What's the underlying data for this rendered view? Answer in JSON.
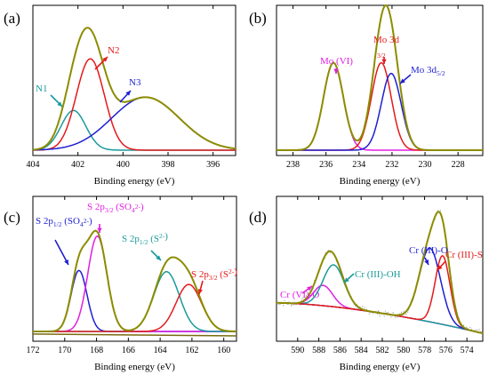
{
  "figure": {
    "colors": {
      "envelope": "#8c8c00",
      "red": "#e41a1c",
      "blue": "#1f1fd1",
      "teal": "#1a9a9a",
      "magenta": "#e01fe0",
      "gray": "#b5b5b5",
      "olive_dark": "#7a6a10",
      "raw_data": "#9a9a9a"
    }
  },
  "chart_data": [
    {
      "panel_label": "(a)",
      "type": "line",
      "xlabel": "Binding energy (eV)",
      "ylabel": "",
      "xlim": [
        404,
        395
      ],
      "x_reversed": true,
      "x_ticks": [
        404,
        402,
        400,
        398,
        396
      ],
      "series": [
        {
          "name": "N1",
          "center": 402.2,
          "height": 0.3,
          "sigma": 0.55,
          "color": "teal"
        },
        {
          "name": "N2",
          "center": 401.45,
          "height": 0.69,
          "sigma": 0.62,
          "color": "red"
        },
        {
          "name": "N3",
          "center": 399.0,
          "height": 0.4,
          "sigma": 1.5,
          "color": "blue"
        },
        {
          "name": "",
          "type": "envelope",
          "color": "envelope"
        }
      ],
      "annotations": [
        "N1",
        "N2",
        "N3"
      ]
    },
    {
      "panel_label": "(b)",
      "type": "line",
      "xlabel": "Binding energy (eV)",
      "ylabel": "",
      "xlim": [
        239,
        226.5
      ],
      "x_reversed": true,
      "x_ticks": [
        238,
        236,
        234,
        232,
        230,
        228
      ],
      "series": [
        {
          "name": "Mo (VI)",
          "center": 235.55,
          "height": 0.66,
          "sigma": 0.6,
          "color": "magenta"
        },
        {
          "name": "Mo 3d3/2",
          "center": 232.65,
          "height": 0.66,
          "sigma": 0.6,
          "color": "red"
        },
        {
          "name": "Mo 3d5/2",
          "center": 232.05,
          "height": 0.58,
          "sigma": 0.6,
          "color": "blue"
        },
        {
          "name": "",
          "type": "envelope",
          "color": "envelope"
        }
      ],
      "annotations": [
        {
          "text": "Mo (VI)",
          "sub": ""
        },
        {
          "text": "Mo 3d",
          "sub": "3/2"
        },
        {
          "text": "Mo 3d",
          "sub": "5/2"
        }
      ]
    },
    {
      "panel_label": "(c)",
      "type": "line",
      "xlabel": "Binding energy (eV)",
      "ylabel": "",
      "xlim": [
        172,
        159.2
      ],
      "x_reversed": true,
      "x_ticks": [
        172,
        170,
        168,
        166,
        164,
        162,
        160
      ],
      "series": [
        {
          "name": "S 2p1/2 (SO4 2-)",
          "center": 169.1,
          "height": 0.48,
          "sigma": 0.5,
          "color": "blue"
        },
        {
          "name": "S 2p3/2 (SO4 2-)",
          "center": 167.95,
          "height": 0.75,
          "sigma": 0.6,
          "color": "magenta"
        },
        {
          "name": "S 2p1/2 (S2-)",
          "center": 163.6,
          "height": 0.47,
          "sigma": 0.8,
          "color": "teal"
        },
        {
          "name": "S 2p3/2 (S2-)",
          "center": 162.2,
          "height": 0.37,
          "sigma": 0.8,
          "color": "red"
        },
        {
          "name": "",
          "type": "envelope",
          "color": "envelope"
        }
      ],
      "annotations": [
        {
          "text": "S 2p",
          "sub": "1/2",
          "tail": " (SO",
          "tsub": "4",
          "tsup": "2-",
          "close": ")"
        },
        {
          "text": "S 2p",
          "sub": "3/2",
          "tail": " (SO",
          "tsub": "4",
          "tsup": "2-",
          "close": ")"
        },
        {
          "text": "S 2p",
          "sub": "1/2",
          "tail": " (S",
          "tsub": "",
          "tsup": "2-",
          "close": ")"
        },
        {
          "text": "S 2p",
          "sub": "3/2",
          "tail": " (S",
          "tsub": "",
          "tsup": "2-",
          "close": ")"
        }
      ]
    },
    {
      "panel_label": "(d)",
      "type": "line",
      "xlabel": "Binding energy (eV)",
      "ylabel": "",
      "xlim": [
        592,
        572.5
      ],
      "x_reversed": true,
      "x_ticks": [
        590,
        588,
        586,
        584,
        582,
        580,
        578,
        576,
        574
      ],
      "series": [
        {
          "name": "Cr (VI)-O",
          "center": 587.6,
          "height": 0.16,
          "sigma": 0.9,
          "color": "magenta"
        },
        {
          "name": "Cr (III)-OH",
          "center": 586.6,
          "height": 0.33,
          "sigma": 1.0,
          "color": "teal"
        },
        {
          "name": "Cr (III)-O",
          "center": 577.5,
          "height": 0.58,
          "sigma": 1.0,
          "color": "blue"
        },
        {
          "name": "Cr (III)-S",
          "center": 576.3,
          "height": 0.54,
          "sigma": 0.7,
          "color": "red"
        },
        {
          "name": "",
          "type": "background",
          "color": "gray"
        },
        {
          "name": "",
          "type": "envelope",
          "color": "envelope"
        }
      ],
      "annotations": [
        "Cr (VI)-O",
        "Cr (III)-OH",
        "Cr (III)-O",
        "Cr (III)-S"
      ]
    }
  ]
}
